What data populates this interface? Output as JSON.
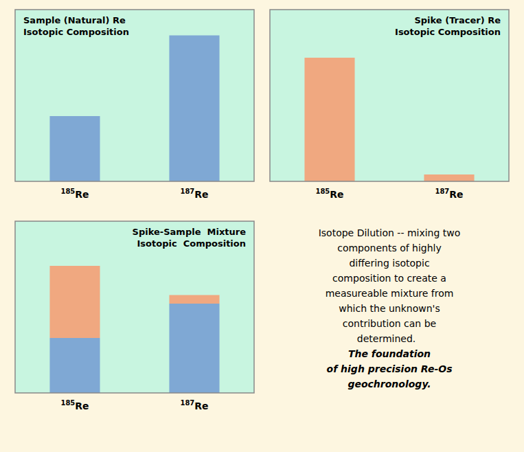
{
  "chart_data": [
    {
      "type": "bar",
      "stacked": true,
      "title": "Sample (Natural) Re\nIsotopic Composition",
      "categories": [
        "185Re",
        "187Re"
      ],
      "series": [
        {
          "color": "#7fa8d4",
          "values": [
            0.38,
            0.85
          ]
        },
        {
          "color": "#f0a880",
          "values": [
            0.0,
            0.0
          ]
        }
      ],
      "ylim": [
        0,
        1.0
      ],
      "yticks": [],
      "tick_labels": "x"
    },
    {
      "type": "bar",
      "stacked": true,
      "title": "Spike (Tracer) Re\nIsotopic Composition",
      "categories": [
        "185Re",
        "187Re"
      ],
      "series": [
        {
          "color": "#7fa8d4",
          "values": [
            0.0,
            0.0
          ]
        },
        {
          "color": "#f0a880",
          "values": [
            0.72,
            0.04
          ]
        }
      ],
      "ylim": [
        0,
        1.0
      ],
      "yticks": [],
      "tick_labels": "x"
    },
    {
      "type": "bar",
      "stacked": true,
      "title": "Spike-Sample  Mixture\nIsotopic  Composition",
      "categories": [
        "185Re",
        "187Re"
      ],
      "series": [
        {
          "color": "#7fa8d4",
          "values": [
            0.32,
            0.52
          ]
        },
        {
          "color": "#f0a880",
          "values": [
            0.42,
            0.05
          ]
        }
      ],
      "ylim": [
        0,
        1.0
      ],
      "yticks": [],
      "tick_labels": "x"
    },
    {
      "type": "text",
      "annotations": [
        [
          "Isotope Dilution -- mixing two",
          "components of highly",
          "differing isotopic",
          "composition to create a",
          "measureable mixture from",
          "which the unknown's",
          "contribution can be",
          "determined.  "
        ],
        [
          "The foundation",
          "of high precision Re-Os",
          "geochronology."
        ]
      ]
    }
  ]
}
